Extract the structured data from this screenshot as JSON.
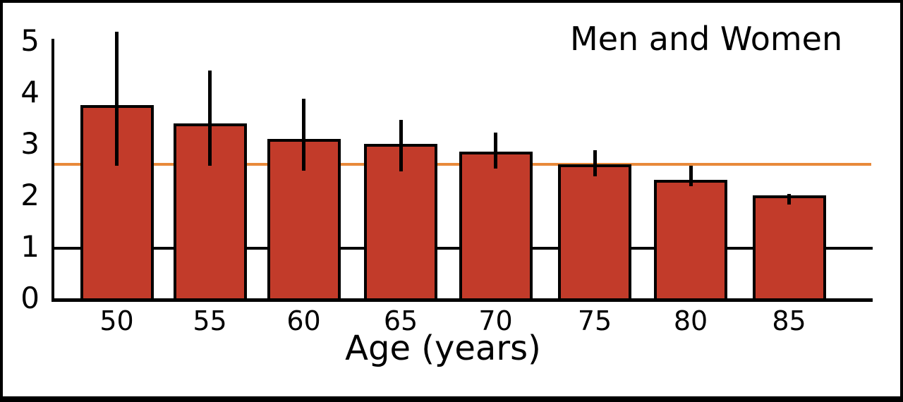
{
  "chart_data": {
    "type": "bar",
    "title": "Men and Women",
    "xlabel": "Age (years)",
    "ylabel": "",
    "ylim": [
      0,
      5
    ],
    "yticks": [
      0,
      1,
      2,
      3,
      4,
      5
    ],
    "categories": [
      "50",
      "55",
      "60",
      "65",
      "70",
      "75",
      "80",
      "85"
    ],
    "values": [
      3.75,
      3.4,
      3.1,
      3.0,
      2.85,
      2.6,
      2.3,
      2.0
    ],
    "error_low": [
      2.6,
      2.6,
      2.5,
      2.5,
      2.55,
      2.4,
      2.2,
      1.85
    ],
    "error_high": [
      5.2,
      4.45,
      3.9,
      3.5,
      3.25,
      2.9,
      2.6,
      2.05
    ],
    "reference_line": {
      "value": 2.63,
      "color": "#e8893a"
    },
    "extra_gridlines": [
      1
    ],
    "bar_color": "#c23b2a",
    "bar_border_color": "#000000",
    "axis_color": "#000000",
    "grid": "off",
    "legend_position": "none"
  }
}
